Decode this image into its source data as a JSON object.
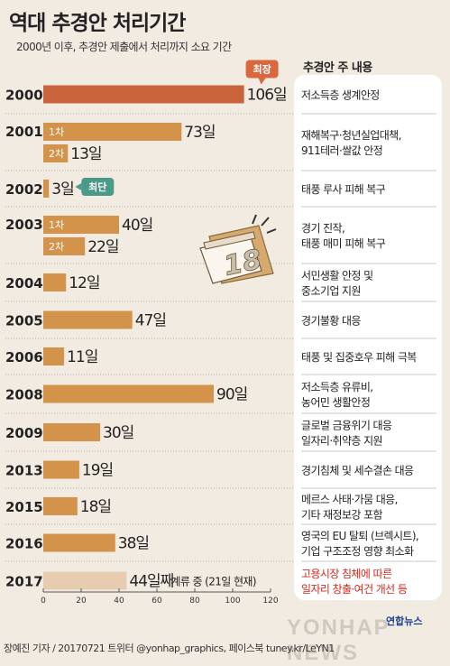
{
  "header": {
    "title": "역대 추경안 처리기간",
    "subtitle": "2000년 이후, 추경안 제출에서 처리까지 소요 기간",
    "content_heading": "추경안 주 내용"
  },
  "colors": {
    "bar": "#d4934a",
    "bar_longest": "#c8633a",
    "bar_pending": "#e6cdb0",
    "badge_longest": "#d9683f",
    "badge_shortest": "#4a9a8a",
    "separator": "#b9b2a8",
    "highlight_text": "#d8281e"
  },
  "chart_data": {
    "type": "bar",
    "orientation": "horizontal",
    "title": "역대 추경안 처리기간",
    "subtitle": "2000년 이후, 추경안 제출에서 처리까지 소요 기간",
    "xlim": [
      0,
      120
    ],
    "xticks": [
      "0",
      "20",
      "40",
      "60",
      "80",
      "100",
      "120"
    ],
    "unit": "일",
    "grid": false,
    "rows": [
      {
        "year": "2000",
        "content": [
          "저소득층 생계안정"
        ],
        "bars": [
          {
            "tag": "",
            "value": 106,
            "label": "106일",
            "style": "longest",
            "badge": "최장"
          }
        ]
      },
      {
        "year": "2001",
        "content": [
          "재해복구·청년실업대책,",
          "911테러·쌀값 안정"
        ],
        "bars": [
          {
            "tag": "1차",
            "value": 73,
            "label": "73일"
          },
          {
            "tag": "2차",
            "value": 13,
            "label": "13일"
          }
        ]
      },
      {
        "year": "2002",
        "content": [
          "태풍 루사 피해 복구"
        ],
        "bars": [
          {
            "tag": "",
            "value": 3,
            "label": "3일",
            "badge": "최단"
          }
        ]
      },
      {
        "year": "2003",
        "content": [
          "경기 진작,",
          "태풍 매미 피해 복구"
        ],
        "bars": [
          {
            "tag": "1차",
            "value": 40,
            "label": "40일"
          },
          {
            "tag": "2차",
            "value": 22,
            "label": "22일"
          }
        ]
      },
      {
        "year": "2004",
        "content": [
          "서민생활 안정 및",
          "중소기업 지원"
        ],
        "bars": [
          {
            "tag": "",
            "value": 12,
            "label": "12일"
          }
        ]
      },
      {
        "year": "2005",
        "content": [
          "경기불황 대응"
        ],
        "bars": [
          {
            "tag": "",
            "value": 47,
            "label": "47일"
          }
        ]
      },
      {
        "year": "2006",
        "content": [
          "태풍 및 집중호우 피해 극복"
        ],
        "bars": [
          {
            "tag": "",
            "value": 11,
            "label": "11일"
          }
        ]
      },
      {
        "year": "2008",
        "content": [
          "저소득층 유류비,",
          "농어민 생활안정"
        ],
        "bars": [
          {
            "tag": "",
            "value": 90,
            "label": "90일"
          }
        ]
      },
      {
        "year": "2009",
        "content": [
          "글로벌 금융위기 대응",
          "일자리·취약층 지원"
        ],
        "bars": [
          {
            "tag": "",
            "value": 30,
            "label": "30일"
          }
        ]
      },
      {
        "year": "2013",
        "content": [
          "경기침체 및 세수결손 대응"
        ],
        "bars": [
          {
            "tag": "",
            "value": 19,
            "label": "19일"
          }
        ]
      },
      {
        "year": "2015",
        "content": [
          "메르스 사태·가뭄 대응,",
          "기타 재정보강 포함"
        ],
        "bars": [
          {
            "tag": "",
            "value": 18,
            "label": "18일"
          }
        ]
      },
      {
        "year": "2016",
        "content": [
          "영국의 EU 탈퇴 (브렉시트),",
          "기업 구조조정 영향 최소화"
        ],
        "bars": [
          {
            "tag": "",
            "value": 38,
            "label": "38일"
          }
        ]
      },
      {
        "year": "2017",
        "content": [
          "고용시장 침체에 따른",
          "일자리 창출·여건 개선 등"
        ],
        "highlight": true,
        "bars": [
          {
            "tag": "",
            "value": 44,
            "label": "44일째",
            "style": "pending",
            "suffix": "계류 중 (21일 현재)"
          }
        ]
      }
    ]
  },
  "calendar": {
    "day": "18"
  },
  "footer": {
    "credit": "장예진 기자 / 20170721 트위터 @yonhap_graphics, 페이스북 tuney.kr/LeYN1",
    "logo": "연합뉴스",
    "watermark": "YONHAP NEWS"
  }
}
